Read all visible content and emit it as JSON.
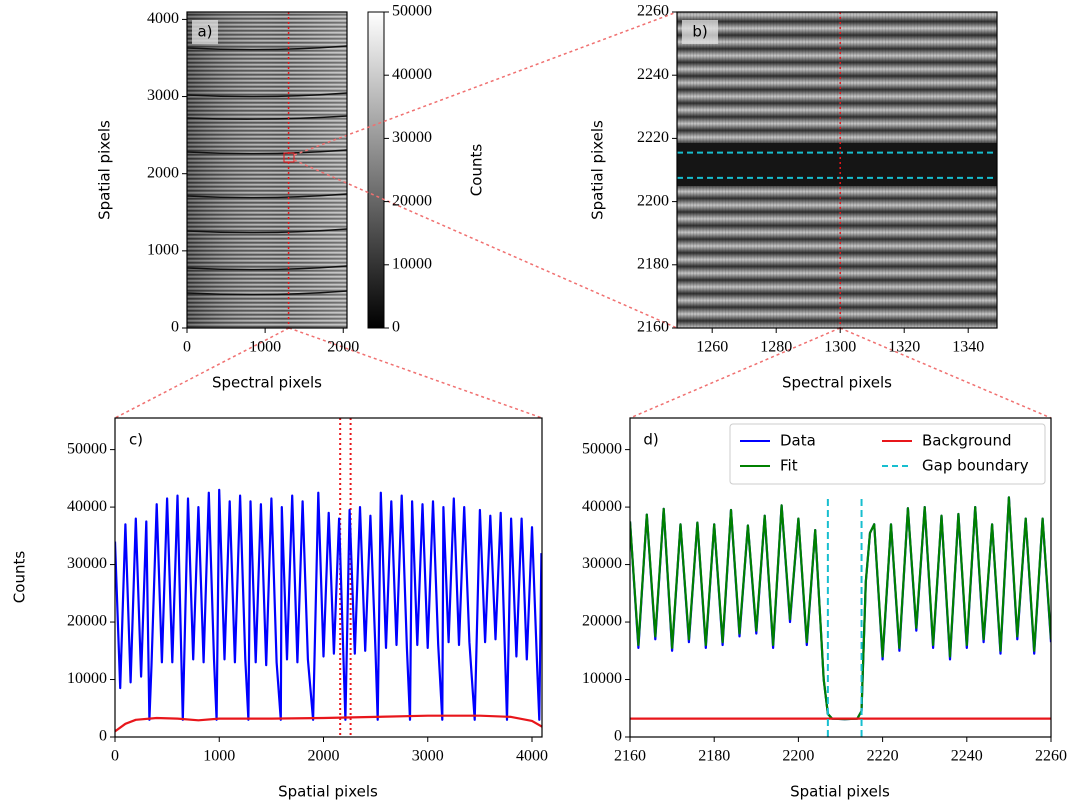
{
  "chart_data": [
    {
      "type": "image",
      "title": "a)",
      "xlabel": "Spectral pixels",
      "ylabel": "Spatial pixels",
      "xlim": [
        0,
        2048
      ],
      "ylim": [
        0,
        4096
      ],
      "xticks": [
        0,
        1000,
        2000
      ],
      "yticks": [
        0,
        1000,
        2000,
        3000,
        4000
      ],
      "vline_x": 1300,
      "colorbar": {
        "label": "Counts",
        "lim": [
          0,
          50000
        ],
        "ticks": [
          0,
          10000,
          20000,
          30000,
          40000,
          50000
        ]
      }
    },
    {
      "type": "image",
      "title": "b)",
      "xlabel": "Spectral pixels",
      "ylabel": "Spatial pixels",
      "xlim": [
        1249,
        1349
      ],
      "ylim": [
        2160,
        2260
      ],
      "xticks": [
        1260,
        1280,
        1300,
        1320,
        1340
      ],
      "yticks": [
        2160,
        2180,
        2200,
        2220,
        2240,
        2260
      ],
      "vline_x": 1300,
      "hlines": [
        2207.5,
        2215.5
      ]
    },
    {
      "type": "line",
      "title": "c)",
      "xlabel": "Spatial pixels",
      "ylabel": "Counts",
      "xlim": [
        0,
        4096
      ],
      "ylim": [
        0,
        55500
      ],
      "xticks": [
        0,
        1000,
        2000,
        3000,
        4000
      ],
      "yticks": [
        0,
        10000,
        20000,
        30000,
        40000,
        50000
      ],
      "vlines": [
        2160,
        2260
      ],
      "series": [
        {
          "color": "#0000ff",
          "x": [
            0,
            50,
            100,
            150,
            200,
            250,
            300,
            330,
            350,
            400,
            450,
            500,
            550,
            600,
            650,
            700,
            750,
            800,
            850,
            900,
            950,
            975,
            1000,
            1050,
            1100,
            1150,
            1200,
            1250,
            1280,
            1300,
            1350,
            1400,
            1450,
            1500,
            1550,
            1590,
            1600,
            1650,
            1700,
            1750,
            1800,
            1850,
            1900,
            1950,
            2000,
            2050,
            2100,
            2150,
            2210,
            2250,
            2300,
            2350,
            2400,
            2450,
            2500,
            2520,
            2550,
            2600,
            2650,
            2700,
            2750,
            2800,
            2830,
            2850,
            2900,
            2950,
            3000,
            3050,
            3100,
            3140,
            3150,
            3200,
            3250,
            3300,
            3350,
            3400,
            3450,
            3500,
            3550,
            3600,
            3650,
            3700,
            3760,
            3800,
            3850,
            3900,
            3950,
            4000,
            4050,
            4070,
            4090
          ],
          "values": [
            34000,
            8500,
            37000,
            9500,
            38000,
            10500,
            37500,
            3000,
            12500,
            40500,
            13000,
            41500,
            13000,
            42000,
            3000,
            41500,
            13500,
            40000,
            13000,
            42500,
            13500,
            3000,
            43000,
            13500,
            41000,
            13000,
            42000,
            13500,
            3000,
            41000,
            13000,
            40500,
            12500,
            41500,
            13000,
            3000,
            40000,
            13500,
            42000,
            13000,
            41000,
            13500,
            3000,
            42500,
            14000,
            39000,
            14500,
            38000,
            3000,
            39500,
            14500,
            40000,
            15000,
            38500,
            14500,
            3000,
            42500,
            15500,
            41000,
            16000,
            42000,
            15500,
            3000,
            41000,
            16000,
            40500,
            15500,
            41000,
            16000,
            3000,
            40000,
            16500,
            41500,
            16000,
            40000,
            16500,
            3000,
            39500,
            16500,
            38500,
            17000,
            39000,
            3000,
            38000,
            14000,
            38000,
            13500,
            36500,
            12000,
            3000,
            32000
          ]
        },
        {
          "color": "#e8161b",
          "x": [
            0,
            100,
            200,
            400,
            600,
            800,
            1000,
            1500,
            2000,
            2500,
            3000,
            3500,
            3800,
            4000,
            4096
          ],
          "values": [
            1000,
            2300,
            3000,
            3300,
            3200,
            2900,
            3200,
            3200,
            3300,
            3500,
            3700,
            3700,
            3500,
            2800,
            1800
          ]
        }
      ]
    },
    {
      "type": "line",
      "title": "d)",
      "xlabel": "Spatial pixels",
      "xlim": [
        2160,
        2260
      ],
      "ylim": [
        0,
        55500
      ],
      "xticks": [
        2160,
        2180,
        2200,
        2220,
        2240,
        2260
      ],
      "yticks": [
        0,
        10000,
        20000,
        30000,
        40000,
        50000
      ],
      "legend": "upper right",
      "series": [
        {
          "name": "Data",
          "color": "#0000ff",
          "x": [
            2160,
            2162,
            2164,
            2166,
            2168,
            2170,
            2172,
            2174,
            2176,
            2178,
            2180,
            2182,
            2184,
            2186,
            2188,
            2190,
            2192,
            2194,
            2196,
            2198,
            2200,
            2202,
            2204,
            2206,
            2207,
            2208,
            2211,
            2214,
            2215,
            2216,
            2217,
            2218,
            2220,
            2222,
            2224,
            2226,
            2228,
            2230,
            2232,
            2234,
            2236,
            2238,
            2240,
            2242,
            2244,
            2246,
            2248,
            2250,
            2252,
            2254,
            2256,
            2258,
            2260
          ],
          "values": [
            37500,
            15500,
            38700,
            17000,
            39700,
            15000,
            37000,
            16500,
            37300,
            15500,
            37000,
            16000,
            39500,
            17500,
            36800,
            18000,
            38500,
            15500,
            40300,
            20000,
            38000,
            16000,
            36000,
            10000,
            4000,
            3200,
            3100,
            3200,
            4500,
            27000,
            35500,
            37000,
            13500,
            37000,
            15000,
            39800,
            18500,
            40000,
            15500,
            38500,
            13500,
            38800,
            15500,
            40000,
            16500,
            37000,
            14500,
            41700,
            17000,
            38000,
            14500,
            38000,
            16500
          ]
        },
        {
          "name": "Fit",
          "color": "#008000",
          "x": [
            2160,
            2162,
            2164,
            2166,
            2168,
            2170,
            2172,
            2174,
            2176,
            2178,
            2180,
            2182,
            2184,
            2186,
            2188,
            2190,
            2192,
            2194,
            2196,
            2198,
            2200,
            2202,
            2204,
            2206,
            2207,
            2208,
            2211,
            2214,
            2215,
            2216,
            2217,
            2218,
            2220,
            2222,
            2224,
            2226,
            2228,
            2230,
            2232,
            2234,
            2236,
            2238,
            2240,
            2242,
            2244,
            2246,
            2248,
            2250,
            2252,
            2254,
            2256,
            2258,
            2260
          ],
          "values": [
            37500,
            16000,
            38700,
            17500,
            39700,
            15500,
            37000,
            17000,
            37300,
            16000,
            37000,
            16500,
            39500,
            18000,
            36800,
            18500,
            38500,
            16000,
            40300,
            20500,
            38000,
            16500,
            36000,
            10000,
            4000,
            3200,
            3100,
            3200,
            4500,
            27000,
            35500,
            37000,
            14000,
            37000,
            15500,
            39800,
            19000,
            40000,
            16000,
            38500,
            14000,
            38800,
            16000,
            40000,
            17000,
            37000,
            15000,
            41700,
            17500,
            38000,
            15000,
            38000,
            17000
          ]
        },
        {
          "name": "Background",
          "color": "#e8161b",
          "x": [
            2160,
            2260
          ],
          "values": [
            3200,
            3200
          ]
        },
        {
          "name": "Gap boundary",
          "color": "#17becf",
          "dash": true,
          "vlines": [
            2207,
            2215
          ]
        }
      ]
    }
  ]
}
